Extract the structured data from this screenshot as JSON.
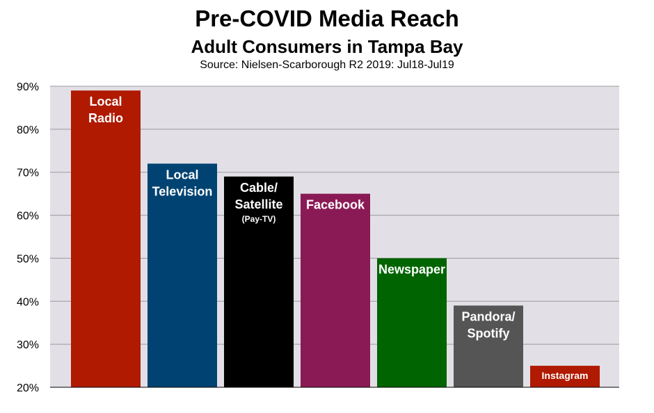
{
  "chart_data": {
    "type": "bar",
    "title": "Pre-COVID Media Reach",
    "subtitle": "Adult Consumers in Tampa Bay",
    "source": "Source: Nielsen-Scarborough R2 2019: Jul18-Jul19",
    "xlabel": "",
    "ylabel": "",
    "ylim": [
      20,
      90
    ],
    "yticks": [
      20,
      30,
      40,
      50,
      60,
      70,
      80,
      90
    ],
    "ytick_labels": [
      "20%",
      "30%",
      "40%",
      "50%",
      "60%",
      "70%",
      "80%",
      "90%"
    ],
    "grid": true,
    "plot_background": "#e2e0e6",
    "gridline_color": "#9a9a9a",
    "categories": [
      {
        "label": [
          "Local",
          "Radio"
        ],
        "value": 89,
        "color": "#b01a00"
      },
      {
        "label": [
          "Local",
          "Television"
        ],
        "value": 72,
        "color": "#004372"
      },
      {
        "label": [
          "Cable/",
          "Satellite",
          "(Pay-TV)"
        ],
        "value": 69,
        "color": "#000000"
      },
      {
        "label": [
          "Facebook"
        ],
        "value": 65,
        "color": "#8a1a56"
      },
      {
        "label": [
          "Newspaper"
        ],
        "value": 50,
        "color": "#006400"
      },
      {
        "label": [
          "Pandora/",
          "Spotify"
        ],
        "value": 39,
        "color": "#555555"
      },
      {
        "label": [
          "Instagram"
        ],
        "value": 25,
        "color": "#b01a00"
      }
    ]
  }
}
